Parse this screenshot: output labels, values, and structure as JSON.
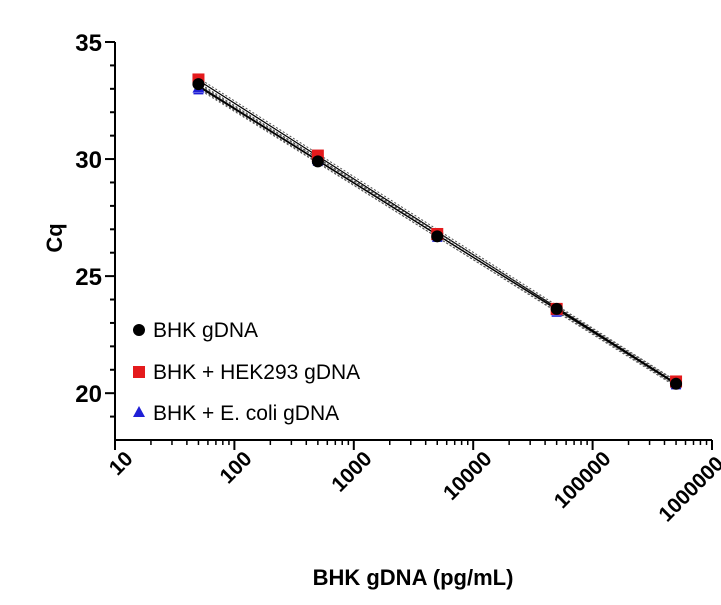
{
  "chart_data": {
    "type": "scatter",
    "title": "",
    "xlabel": "BHK gDNA (pg/mL)",
    "ylabel": "Cq",
    "x_scale": "log",
    "xlim": [
      10,
      1000000
    ],
    "ylim": [
      18,
      35
    ],
    "x_tick_labels": [
      "10",
      "100",
      "1000",
      "10000",
      "100000",
      "1000000"
    ],
    "y_tick_labels": [
      "20",
      "25",
      "30",
      "35"
    ],
    "y_ticks": [
      20,
      25,
      30,
      35
    ],
    "grid": false,
    "legend_position": "bottom-left",
    "x": [
      50,
      500,
      5000,
      50000,
      500000
    ],
    "series": [
      {
        "name": "BHK gDNA",
        "marker": "circle",
        "color": "#000000",
        "values": [
          33.2,
          29.9,
          26.7,
          23.6,
          20.4
        ]
      },
      {
        "name": "BHK + HEK293 gDNA",
        "marker": "square",
        "color": "#e41a1c",
        "values": [
          33.4,
          30.15,
          26.8,
          23.6,
          20.5
        ]
      },
      {
        "name": "BHK + E. coli gDNA",
        "marker": "triangle",
        "color": "#1f1fd6",
        "values": [
          33.05,
          30.0,
          26.75,
          23.55,
          20.45
        ]
      }
    ]
  }
}
